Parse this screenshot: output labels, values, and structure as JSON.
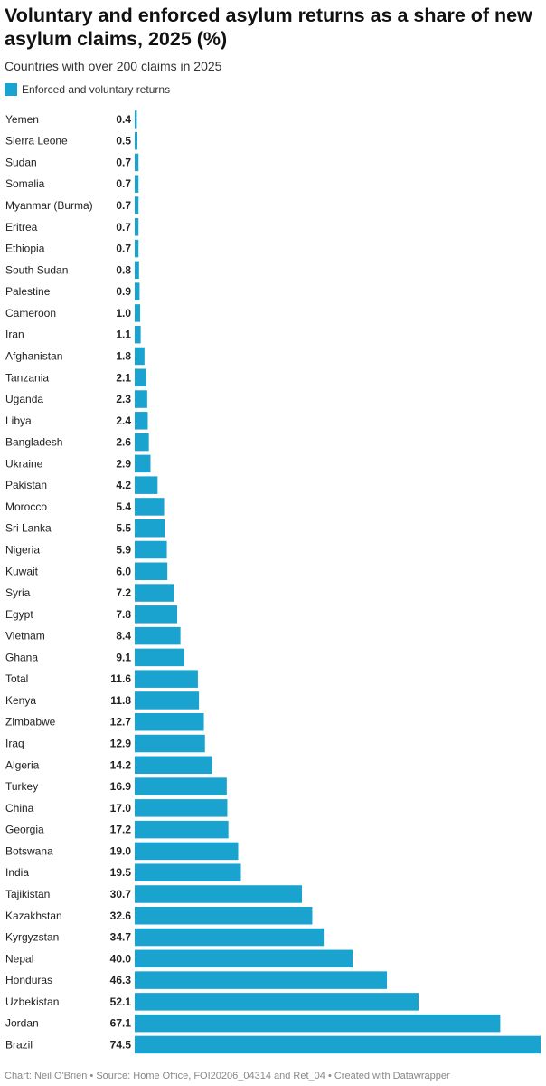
{
  "chart_data": {
    "type": "bar",
    "orientation": "horizontal",
    "title": "Voluntary and enforced asylum returns as a share of new asylum claims, 2025 (%)",
    "subtitle": "Countries with over 200 claims in 2025",
    "legend": "top-left",
    "grid": false,
    "series": [
      {
        "name": "Enforced and voluntary returns",
        "color": "#1aa3cf",
        "values": [
          0.4,
          0.5,
          0.7,
          0.7,
          0.7,
          0.7,
          0.7,
          0.8,
          0.9,
          1.0,
          1.1,
          1.8,
          2.1,
          2.3,
          2.4,
          2.6,
          2.9,
          4.2,
          5.4,
          5.5,
          5.9,
          6.0,
          7.2,
          7.8,
          8.4,
          9.1,
          11.6,
          11.8,
          12.7,
          12.9,
          14.2,
          16.9,
          17.0,
          17.2,
          19.0,
          19.5,
          30.7,
          32.6,
          34.7,
          40.0,
          46.3,
          52.1,
          67.1,
          74.5
        ]
      }
    ],
    "categories": [
      "Yemen",
      "Sierra Leone",
      "Sudan",
      "Somalia",
      "Myanmar (Burma)",
      "Eritrea",
      "Ethiopia",
      "South Sudan",
      "Palestine",
      "Cameroon",
      "Iran",
      "Afghanistan",
      "Tanzania",
      "Uganda",
      "Libya",
      "Bangladesh",
      "Ukraine",
      "Pakistan",
      "Morocco",
      "Sri Lanka",
      "Nigeria",
      "Kuwait",
      "Syria",
      "Egypt",
      "Vietnam",
      "Ghana",
      "Total",
      "Kenya",
      "Zimbabwe",
      "Iraq",
      "Algeria",
      "Turkey",
      "China",
      "Georgia",
      "Botswana",
      "India",
      "Tajikistan",
      "Kazakhstan",
      "Kyrgyzstan",
      "Nepal",
      "Honduras",
      "Uzbekistan",
      "Jordan",
      "Brazil"
    ],
    "xlim": [
      0,
      74.5
    ]
  },
  "source_note": "Chart: Neil O'Brien • Source: Home Office, FOI20206_04314 and Ret_04 • Created with Datawrapper"
}
